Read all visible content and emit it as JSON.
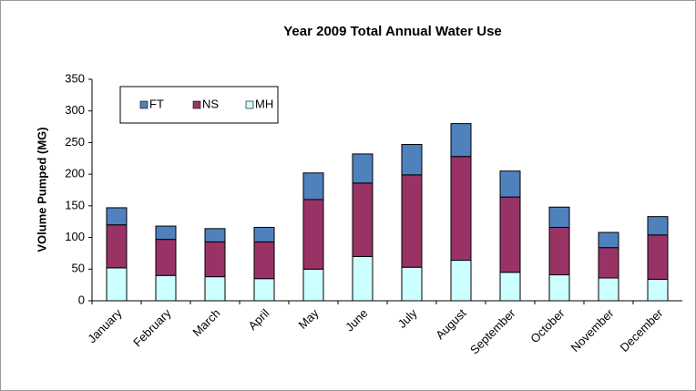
{
  "chart_data": {
    "type": "stacked_bar",
    "title": "Year 2009 Total Annual  Water Use",
    "y_label": "VOlume Pumped (MG)",
    "categories": [
      "January",
      "February",
      "March",
      "April",
      "May",
      "June",
      "July",
      "August",
      "September",
      "October",
      "November",
      "December"
    ],
    "series": [
      {
        "name": "FT",
        "color": "#4f81bd",
        "values": [
          27,
          21,
          21,
          23,
          42,
          46,
          48,
          52,
          41,
          32,
          24,
          29
        ]
      },
      {
        "name": "NS",
        "color": "#993366",
        "values": [
          68,
          57,
          55,
          58,
          110,
          116,
          146,
          164,
          119,
          75,
          48,
          70
        ]
      },
      {
        "name": "MH",
        "color": "#ccffff",
        "values": [
          52,
          40,
          38,
          35,
          50,
          70,
          53,
          64,
          45,
          41,
          36,
          34
        ]
      }
    ],
    "ylim": [
      0,
      350
    ],
    "yticks": [
      0,
      50,
      100,
      150,
      200,
      250,
      300,
      350
    ],
    "grid": false,
    "legend": "top-left"
  }
}
